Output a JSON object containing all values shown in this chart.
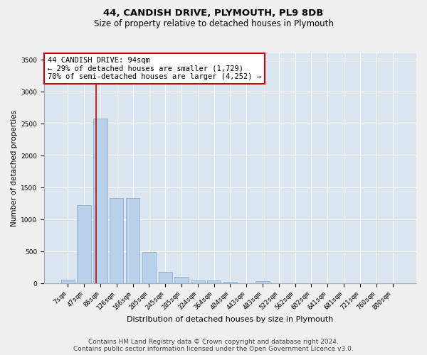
{
  "title_line1": "44, CANDISH DRIVE, PLYMOUTH, PL9 8DB",
  "title_line2": "Size of property relative to detached houses in Plymouth",
  "xlabel": "Distribution of detached houses by size in Plymouth",
  "ylabel": "Number of detached properties",
  "bar_color": "#b8d0e8",
  "bar_edge_color": "#7aaad0",
  "background_color": "#dce6f0",
  "grid_color": "#ffffff",
  "categories": [
    "7sqm",
    "47sqm",
    "86sqm",
    "126sqm",
    "166sqm",
    "205sqm",
    "245sqm",
    "285sqm",
    "324sqm",
    "364sqm",
    "404sqm",
    "443sqm",
    "483sqm",
    "522sqm",
    "562sqm",
    "602sqm",
    "641sqm",
    "681sqm",
    "721sqm",
    "760sqm",
    "800sqm"
  ],
  "values": [
    55,
    1220,
    2580,
    1330,
    1330,
    490,
    185,
    100,
    50,
    45,
    28,
    5,
    32,
    0,
    0,
    0,
    0,
    0,
    0,
    0,
    0
  ],
  "ylim": [
    0,
    3600
  ],
  "yticks": [
    0,
    500,
    1000,
    1500,
    2000,
    2500,
    3000,
    3500
  ],
  "annotation_text": "44 CANDISH DRIVE: 94sqm\n← 29% of detached houses are smaller (1,729)\n70% of semi-detached houses are larger (4,252) →",
  "annotation_box_color": "#ffffff",
  "annotation_box_edge_color": "#cc0000",
  "footnote1": "Contains HM Land Registry data © Crown copyright and database right 2024.",
  "footnote2": "Contains public sector information licensed under the Open Government Licence v3.0.",
  "red_line_color": "#cc0000",
  "title_fontsize": 9.5,
  "subtitle_fontsize": 8.5,
  "annotation_fontsize": 7.5,
  "axis_label_fontsize": 7.5,
  "tick_fontsize": 6.5,
  "xlabel_fontsize": 8,
  "footnote_fontsize": 6.5
}
